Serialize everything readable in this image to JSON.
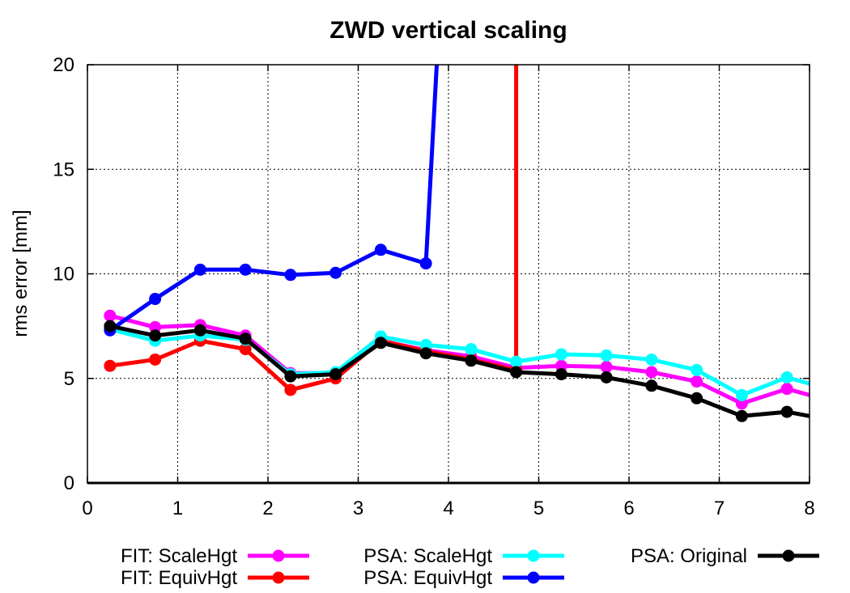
{
  "chart_data": {
    "type": "line",
    "title": "ZWD vertical scaling",
    "xlabel": "",
    "ylabel": "rms error [mm]",
    "xlim": [
      0,
      8
    ],
    "ylim": [
      0,
      20
    ],
    "xticks": [
      0,
      1,
      2,
      3,
      4,
      5,
      6,
      7,
      8
    ],
    "yticks": [
      0,
      5,
      10,
      15,
      20
    ],
    "grid": true,
    "legend_position": "bottom",
    "series": [
      {
        "name": "FIT: ScaleHgt",
        "color": "#ff00ff",
        "x": [
          0.25,
          0.75,
          1.25,
          1.75,
          2.25,
          2.75,
          3.25,
          3.75,
          4.25,
          4.75,
          5.25,
          5.75,
          6.25,
          6.75,
          7.25,
          7.75,
          8.0
        ],
        "y": [
          8.0,
          7.45,
          7.55,
          7.05,
          5.25,
          5.25,
          6.8,
          6.35,
          6.05,
          5.5,
          5.6,
          5.55,
          5.3,
          4.85,
          3.8,
          4.5,
          4.2
        ]
      },
      {
        "name": "FIT: EquivHgt",
        "color": "#ff0000",
        "x": [
          0.25,
          0.75,
          1.25,
          1.75,
          2.25,
          2.75,
          3.25,
          3.75,
          4.25,
          4.75,
          4.75
        ],
        "y": [
          5.6,
          5.9,
          6.8,
          6.4,
          4.45,
          5.0,
          6.8,
          6.3,
          5.9,
          5.4,
          20.0
        ]
      },
      {
        "name": "PSA: ScaleHgt",
        "color": "#00ffff",
        "x": [
          0.25,
          0.75,
          1.25,
          1.75,
          2.25,
          2.75,
          3.25,
          3.75,
          4.25,
          4.75,
          5.25,
          5.75,
          6.25,
          6.75,
          7.25,
          7.75,
          8.0
        ],
        "y": [
          7.35,
          6.8,
          7.05,
          6.85,
          5.2,
          5.3,
          7.0,
          6.6,
          6.4,
          5.8,
          6.15,
          6.1,
          5.9,
          5.4,
          4.2,
          5.05,
          4.75
        ]
      },
      {
        "name": "PSA: EquivHgt",
        "color": "#0000ff",
        "x": [
          0.25,
          0.75,
          1.25,
          1.75,
          2.25,
          2.75,
          3.25,
          3.75,
          3.87
        ],
        "y": [
          7.3,
          8.8,
          10.2,
          10.2,
          9.95,
          10.05,
          11.15,
          10.5,
          20.0
        ]
      },
      {
        "name": "PSA: Original",
        "color": "#000000",
        "x": [
          0.25,
          0.75,
          1.25,
          1.75,
          2.25,
          2.75,
          3.25,
          3.75,
          4.25,
          4.75,
          5.25,
          5.75,
          6.25,
          6.75,
          7.25,
          7.75,
          8.0
        ],
        "y": [
          7.5,
          7.05,
          7.3,
          6.9,
          5.1,
          5.2,
          6.7,
          6.2,
          5.85,
          5.3,
          5.2,
          5.05,
          4.65,
          4.05,
          3.2,
          3.4,
          3.2
        ]
      }
    ]
  }
}
